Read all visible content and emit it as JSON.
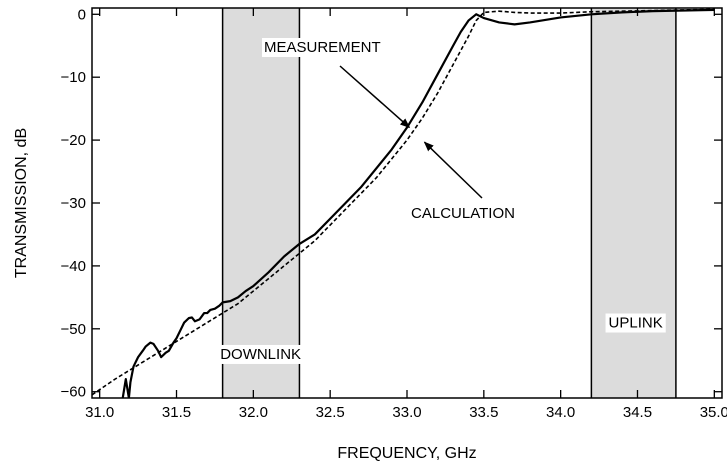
{
  "chart_data": {
    "type": "line",
    "xlabel": "FREQUENCY, GHz",
    "ylabel": "TRANSMISSION, dB",
    "xlim": [
      30.95,
      35.05
    ],
    "ylim": [
      -61,
      1
    ],
    "xticks": [
      31.0,
      31.5,
      32.0,
      32.5,
      33.0,
      33.5,
      34.0,
      34.5,
      35.0
    ],
    "xtick_labels": [
      "31.0",
      "31.5",
      "32.0",
      "32.5",
      "33.0",
      "33.5",
      "34.0",
      "34.5",
      "35.0"
    ],
    "yticks": [
      0,
      -10,
      -20,
      -30,
      -40,
      -50,
      -60
    ],
    "ytick_labels": [
      "0",
      "−10",
      "−20",
      "−30",
      "−40",
      "−50",
      "−60"
    ],
    "grid": false,
    "bands": [
      {
        "label": "DOWNLINK",
        "x0": 31.8,
        "x1": 32.3,
        "color": "#dcdcdc"
      },
      {
        "label": "UPLINK",
        "x0": 34.2,
        "x1": 34.75,
        "color": "#dcdcdc"
      }
    ],
    "annotations": [
      {
        "text": "MEASUREMENT",
        "points_to": [
          33.03,
          -18.3
        ]
      },
      {
        "text": "CALCULATION",
        "points_to": [
          33.1,
          -20.0
        ]
      }
    ],
    "series": [
      {
        "name": "MEASUREMENT",
        "style": "solid",
        "x": [
          31.15,
          31.17,
          31.19,
          31.2,
          31.22,
          31.25,
          31.28,
          31.3,
          31.33,
          31.35,
          31.38,
          31.4,
          31.43,
          31.45,
          31.48,
          31.5,
          31.53,
          31.55,
          31.58,
          31.6,
          31.62,
          31.65,
          31.68,
          31.7,
          31.72,
          31.75,
          31.78,
          31.8,
          31.85,
          31.9,
          31.95,
          32.0,
          32.1,
          32.2,
          32.3,
          32.4,
          32.5,
          32.6,
          32.7,
          32.8,
          32.9,
          33.0,
          33.1,
          33.2,
          33.3,
          33.35,
          33.4,
          33.45,
          33.5,
          33.6,
          33.7,
          33.8,
          33.9,
          34.0,
          34.2,
          34.4,
          34.6,
          34.8,
          35.0
        ],
        "y": [
          -61.0,
          -58.0,
          -61.0,
          -58.5,
          -56.0,
          -54.5,
          -53.5,
          -52.8,
          -52.2,
          -52.4,
          -53.5,
          -54.5,
          -53.8,
          -53.5,
          -52.2,
          -51.5,
          -50.0,
          -49.0,
          -48.3,
          -48.2,
          -48.8,
          -48.5,
          -47.5,
          -47.5,
          -47.0,
          -46.8,
          -46.3,
          -45.8,
          -45.6,
          -45.0,
          -44.0,
          -43.2,
          -41.0,
          -38.5,
          -36.5,
          -35.0,
          -32.5,
          -30.0,
          -27.5,
          -24.5,
          -21.5,
          -18.0,
          -14.0,
          -9.5,
          -5.0,
          -2.8,
          -1.0,
          0.0,
          -0.6,
          -1.3,
          -1.6,
          -1.3,
          -0.9,
          -0.5,
          0.0,
          0.3,
          0.5,
          0.6,
          0.7
        ]
      },
      {
        "name": "CALCULATION",
        "style": "dashed",
        "x": [
          30.95,
          31.1,
          31.3,
          31.5,
          31.7,
          31.9,
          32.0,
          32.1,
          32.2,
          32.3,
          32.4,
          32.5,
          32.6,
          32.7,
          32.8,
          32.9,
          33.0,
          33.1,
          33.2,
          33.3,
          33.4,
          33.45,
          33.5,
          33.6,
          33.7,
          33.8,
          34.0,
          34.2,
          34.4,
          34.6,
          34.8,
          35.0
        ],
        "y": [
          -60.5,
          -58.0,
          -55.0,
          -52.0,
          -49.0,
          -46.0,
          -44.0,
          -42.0,
          -40.0,
          -38.0,
          -36.0,
          -33.5,
          -31.0,
          -28.5,
          -26.0,
          -23.0,
          -20.0,
          -16.5,
          -12.5,
          -8.0,
          -3.5,
          -1.0,
          0.3,
          0.5,
          0.3,
          0.2,
          0.2,
          0.4,
          0.5,
          0.6,
          0.7,
          0.8
        ]
      }
    ]
  }
}
